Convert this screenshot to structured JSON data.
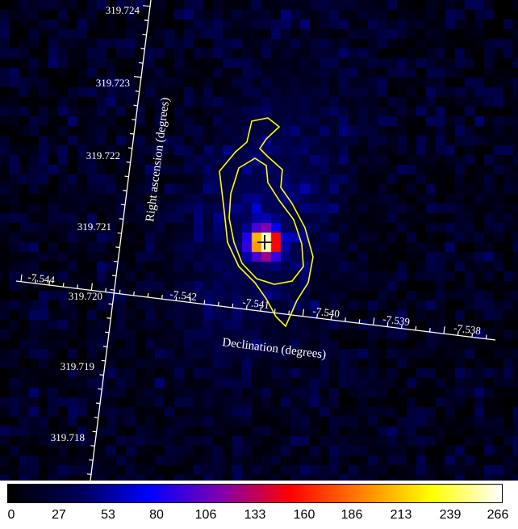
{
  "image": {
    "colormap": [
      "#000000",
      "#000055",
      "#0000ff",
      "#7f00b0",
      "#ff0000",
      "#ff8000",
      "#ffff00",
      "#ffffff"
    ],
    "contour_color": "#ffff00",
    "axis_color": "#ffffff",
    "marker": "plus-icon"
  },
  "axes": {
    "ra": {
      "title": "Right ascension (degrees)",
      "ticks": [
        "319.724",
        "319.723",
        "319.722",
        "319.721",
        "319.720",
        "319.719",
        "319.718"
      ]
    },
    "dec": {
      "title": "Declination (degrees)",
      "ticks": [
        "-7.544",
        "-7.542",
        "-7.541",
        "-7.540",
        "-7.539",
        "-7.538"
      ]
    }
  },
  "colorbar": {
    "min": 0,
    "max": 266,
    "labels": [
      "0",
      "27",
      "53",
      "80",
      "106",
      "133",
      "160",
      "186",
      "213",
      "239",
      "266"
    ]
  }
}
